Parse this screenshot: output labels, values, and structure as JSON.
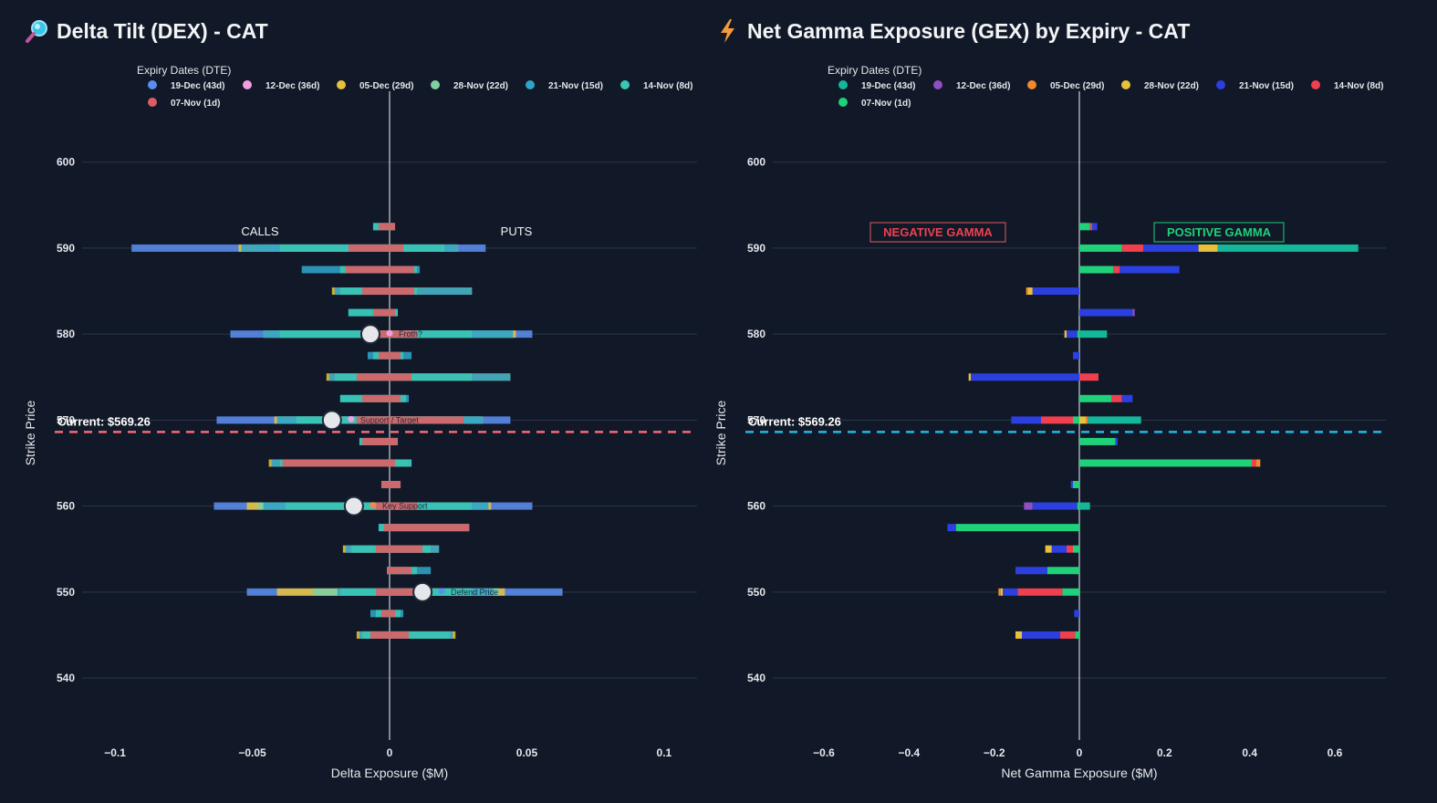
{
  "dex": {
    "title": "Delta Tilt (DEX) - CAT",
    "icon": "magnifier-icon",
    "legend_title": "Expiry Dates (DTE)",
    "calls_label": "CALLS",
    "puts_label": "PUTS",
    "current_label": "Current: $569.26",
    "current_color": "#f26b7a",
    "annotations": [
      "Froth?",
      "Support / Target",
      "Key Support",
      "Defend Price"
    ]
  },
  "gex": {
    "title": "Net Gamma Exposure (GEX) by Expiry - CAT",
    "icon": "lightning-icon",
    "legend_title": "Expiry Dates (DTE)",
    "negative_label": "NEGATIVE GAMMA",
    "positive_label": "POSITIVE GAMMA",
    "current_label": "Current: $569.26",
    "current_color": "#22b8e6"
  },
  "chart_data": [
    {
      "type": "bar",
      "orientation": "horizontal-stacked",
      "title": "Delta Tilt (DEX) - CAT",
      "xlabel": "Delta Exposure ($M)",
      "ylabel": "Strike Price",
      "xlim": [
        -0.112,
        0.112
      ],
      "ylim": [
        533,
        604
      ],
      "xticks": [
        -0.1,
        -0.05,
        0,
        0.05,
        0.1
      ],
      "xtick_labels": [
        "−0.1",
        "−0.05",
        "0",
        "0.05",
        "0.1"
      ],
      "yticks": [
        540,
        550,
        560,
        570,
        580,
        590,
        600
      ],
      "current_price": 569.26,
      "strikes": [
        545,
        547.5,
        550,
        552.5,
        555,
        557.5,
        560,
        562.5,
        565,
        567.5,
        570,
        572.5,
        575,
        577.5,
        580,
        582.5,
        585,
        587.5,
        590,
        592.5
      ],
      "series": [
        {
          "name": "19-Dec (43d)",
          "color": "#5b8def",
          "values": [
            [
              0,
              0
            ],
            [
              0,
              0
            ],
            [
              -0.052,
              0.063
            ],
            [
              0,
              0
            ],
            [
              0,
              0
            ],
            [
              0,
              0
            ],
            [
              -0.064,
              0.052
            ],
            [
              0,
              0
            ],
            [
              0,
              0
            ],
            [
              0,
              0
            ],
            [
              -0.063,
              0.044
            ],
            [
              0,
              0
            ],
            [
              0,
              0
            ],
            [
              0,
              0
            ],
            [
              -0.058,
              0.052
            ],
            [
              0,
              0
            ],
            [
              0,
              0
            ],
            [
              0,
              0
            ],
            [
              -0.094,
              0.035
            ],
            [
              0,
              0
            ]
          ]
        },
        {
          "name": "12-Dec (36d)",
          "color": "#f09ee0",
          "values": [
            [
              0,
              0
            ],
            [
              0,
              0
            ],
            [
              0,
              0
            ],
            [
              0,
              0
            ],
            [
              0,
              0
            ],
            [
              0,
              0
            ],
            [
              0,
              0
            ],
            [
              0,
              0
            ],
            [
              0,
              0
            ],
            [
              0,
              0
            ],
            [
              0,
              0
            ],
            [
              0,
              0
            ],
            [
              0,
              0
            ],
            [
              0,
              0
            ],
            [
              0,
              0
            ],
            [
              0,
              0
            ],
            [
              0,
              0
            ],
            [
              0,
              0
            ],
            [
              0,
              0
            ],
            [
              0,
              0
            ]
          ]
        },
        {
          "name": "05-Dec (29d)",
          "color": "#e8c13a",
          "values": [
            [
              -0.012,
              0.024
            ],
            [
              0,
              0
            ],
            [
              -0.041,
              0.042
            ],
            [
              0,
              0
            ],
            [
              -0.017,
              0.018
            ],
            [
              0,
              0
            ],
            [
              -0.052,
              0.037
            ],
            [
              0,
              0
            ],
            [
              -0.044,
              0.007
            ],
            [
              0,
              0
            ],
            [
              -0.042,
              0.034
            ],
            [
              0,
              0
            ],
            [
              -0.023,
              0.044
            ],
            [
              0,
              0
            ],
            [
              -0.046,
              0.046
            ],
            [
              0,
              0
            ],
            [
              -0.021,
              0.03
            ],
            [
              0,
              0
            ],
            [
              -0.055,
              0.025
            ],
            [
              0,
              0
            ]
          ]
        },
        {
          "name": "28-Nov (22d)",
          "color": "#7fcfa3",
          "values": [
            [
              0,
              0
            ],
            [
              0,
              0
            ],
            [
              -0.028,
              0.04
            ],
            [
              0,
              0
            ],
            [
              0,
              0
            ],
            [
              0,
              0
            ],
            [
              -0.048,
              0.036
            ],
            [
              0,
              0
            ],
            [
              0,
              0
            ],
            [
              0,
              0
            ],
            [
              -0.041,
              0.033
            ],
            [
              0,
              0
            ],
            [
              0,
              0
            ],
            [
              0,
              0
            ],
            [
              -0.045,
              0.045
            ],
            [
              0,
              0
            ],
            [
              0,
              0
            ],
            [
              0,
              0
            ],
            [
              -0.048,
              0.024
            ],
            [
              0,
              0
            ]
          ]
        },
        {
          "name": "21-Nov (15d)",
          "color": "#2fa3c8",
          "values": [
            [
              -0.011,
              0.023
            ],
            [
              -0.007,
              0.005
            ],
            [
              -0.019,
              0.038
            ],
            [
              -0.001,
              0.015
            ],
            [
              -0.016,
              0.018
            ],
            [
              -0.004,
              0.029
            ],
            [
              -0.046,
              0.036
            ],
            [
              -0.003,
              0.004
            ],
            [
              -0.043,
              0.008
            ],
            [
              -0.011,
              0.003
            ],
            [
              -0.041,
              0.034
            ],
            [
              -0.018,
              0.007
            ],
            [
              -0.022,
              0.044
            ],
            [
              -0.008,
              0.008
            ],
            [
              -0.046,
              0.045
            ],
            [
              -0.015,
              0.003
            ],
            [
              -0.02,
              0.03
            ],
            [
              -0.032,
              0.011
            ],
            [
              -0.054,
              0.025
            ],
            [
              -0.006,
              0.002
            ]
          ]
        },
        {
          "name": "14-Nov (8d)",
          "color": "#39c6b4",
          "values": [
            [
              -0.01,
              0.022
            ],
            [
              -0.005,
              0.004
            ],
            [
              -0.018,
              0.03
            ],
            [
              -0.001,
              0.01
            ],
            [
              -0.014,
              0.015
            ],
            [
              -0.004,
              0.029
            ],
            [
              -0.038,
              0.03
            ],
            [
              -0.003,
              0.004
            ],
            [
              -0.04,
              0.008
            ],
            [
              -0.011,
              0.003
            ],
            [
              -0.034,
              0.026
            ],
            [
              -0.018,
              0.006
            ],
            [
              -0.02,
              0.03
            ],
            [
              -0.006,
              0.005
            ],
            [
              -0.04,
              0.03
            ],
            [
              -0.015,
              0.003
            ],
            [
              -0.018,
              0.01
            ],
            [
              -0.018,
              0.01
            ],
            [
              -0.04,
              0.02
            ],
            [
              -0.006,
              0.002
            ]
          ]
        },
        {
          "name": "07-Nov (1d)",
          "color": "#e05c63",
          "values": [
            [
              -0.007,
              0.007
            ],
            [
              -0.003,
              0.002
            ],
            [
              -0.005,
              0.01
            ],
            [
              -0.001,
              0.008
            ],
            [
              -0.005,
              0.012
            ],
            [
              -0.002,
              0.029
            ],
            [
              -0.005,
              0.01
            ],
            [
              -0.003,
              0.004
            ],
            [
              -0.039,
              0.002
            ],
            [
              -0.01,
              0.003
            ],
            [
              -0.012,
              0.027
            ],
            [
              -0.01,
              0.004
            ],
            [
              -0.012,
              0.008
            ],
            [
              -0.004,
              0.004
            ],
            [
              -0.01,
              0.01
            ],
            [
              -0.006,
              0.002
            ],
            [
              -0.01,
              0.009
            ],
            [
              -0.016,
              0.009
            ],
            [
              -0.015,
              0.005
            ],
            [
              -0.004,
              0.002
            ]
          ]
        }
      ],
      "markers": [
        {
          "strike": 580,
          "x": -0.007
        },
        {
          "strike": 570,
          "x": -0.021
        },
        {
          "strike": 560,
          "x": -0.013
        },
        {
          "strike": 550,
          "x": 0.012
        }
      ],
      "annotations": [
        {
          "text": "Froth?",
          "strike": 580,
          "x": 0.0,
          "color": "#f09ee0"
        },
        {
          "text": "Support / Target",
          "strike": 570,
          "x": -0.014,
          "color": "#f09ee0"
        },
        {
          "text": "Key Support",
          "strike": 560,
          "x": -0.006,
          "color": "#f08a4b"
        },
        {
          "text": "Defend Price",
          "strike": 550,
          "x": 0.019,
          "color": "#5b8def"
        }
      ]
    },
    {
      "type": "bar",
      "orientation": "horizontal-stacked",
      "title": "Net Gamma Exposure (GEX) by Expiry - CAT",
      "xlabel": "Net Gamma Exposure ($M)",
      "ylabel": "Strike Price",
      "xlim": [
        -0.72,
        0.72
      ],
      "ylim": [
        533,
        604
      ],
      "xticks": [
        -0.6,
        -0.4,
        -0.2,
        0,
        0.2,
        0.4,
        0.6
      ],
      "xtick_labels": [
        "−0.6",
        "−0.4",
        "−0.2",
        "0",
        "0.2",
        "0.4",
        "0.6"
      ],
      "yticks": [
        540,
        550,
        560,
        570,
        580,
        590,
        600
      ],
      "current_price": 569.26,
      "strikes": [
        545,
        547.5,
        550,
        552.5,
        555,
        557.5,
        560,
        562.5,
        565,
        567.5,
        570,
        572.5,
        575,
        577.5,
        580,
        582.5,
        585,
        587.5,
        590,
        592.5
      ],
      "series": [
        {
          "name": "07-Nov (1d)",
          "color": "#1fd179",
          "values": [
            -0.01,
            0,
            -0.04,
            -0.075,
            -0.015,
            -0.29,
            -0.005,
            -0.015,
            0.405,
            0.085,
            -0.015,
            0.075,
            0,
            0,
            -0.005,
            0,
            0,
            0.08,
            0.1,
            0.025
          ]
        },
        {
          "name": "14-Nov (8d)",
          "color": "#f0404f",
          "values": [
            -0.035,
            0,
            -0.105,
            0,
            -0.015,
            0,
            0,
            0,
            0.01,
            0,
            -0.075,
            0.025,
            0.045,
            0,
            0,
            0,
            0,
            0.015,
            0.05,
            0.005
          ]
        },
        {
          "name": "21-Nov (15d)",
          "color": "#2c3fe0",
          "values": [
            -0.09,
            -0.012,
            -0.035,
            -0.075,
            -0.035,
            -0.02,
            -0.105,
            -0.005,
            0,
            0.005,
            -0.07,
            0.025,
            -0.255,
            -0.015,
            -0.025,
            0.125,
            -0.11,
            0.14,
            0.13,
            0.012
          ]
        },
        {
          "name": "28-Nov (22d)",
          "color": "#e8c13a",
          "values": [
            -0.015,
            0,
            -0.005,
            0,
            -0.015,
            0,
            0,
            0,
            0,
            0,
            0.015,
            0,
            -0.005,
            0,
            -0.005,
            0,
            -0.01,
            0,
            0.045,
            0
          ]
        },
        {
          "name": "05-Dec (29d)",
          "color": "#f08a2c",
          "values": [
            0,
            0,
            -0.005,
            0,
            0,
            0,
            0,
            0,
            0.01,
            0,
            0.005,
            0,
            0,
            0,
            0,
            0,
            -0.005,
            0,
            0,
            0
          ]
        },
        {
          "name": "12-Dec (36d)",
          "color": "#8e4fc0",
          "values": [
            0,
            0,
            0,
            0,
            0,
            0,
            -0.02,
            0,
            0,
            0,
            0,
            0,
            0,
            0,
            0,
            0.005,
            0,
            0,
            0,
            0
          ]
        },
        {
          "name": "19-Dec (43d)",
          "color": "#14b79a",
          "values": [
            0,
            0,
            0,
            0,
            0,
            0,
            0.025,
            0,
            0,
            0,
            0.125,
            0,
            0,
            0,
            0.065,
            0,
            0,
            0,
            0.33,
            0
          ]
        }
      ]
    }
  ]
}
